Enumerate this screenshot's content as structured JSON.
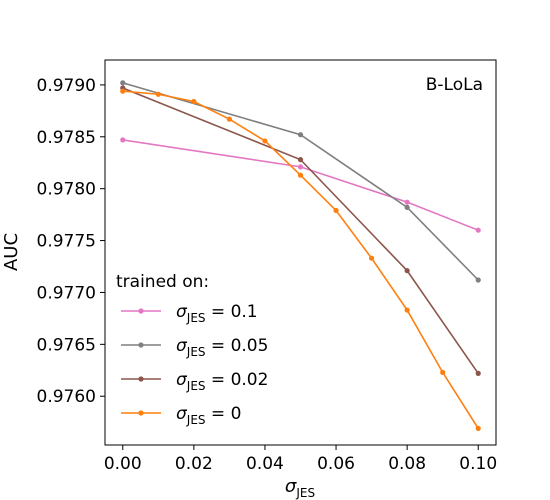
{
  "chart_data": {
    "type": "line",
    "title": "",
    "xlabel_symbol": "σ",
    "xlabel_sub": "JES",
    "ylabel": "AUC",
    "xlim": [
      -0.005,
      0.105
    ],
    "ylim": [
      0.97553,
      0.97924
    ],
    "xticks": [
      0.0,
      0.02,
      0.04,
      0.06,
      0.08,
      0.1
    ],
    "xtick_labels": [
      "0.00",
      "0.02",
      "0.04",
      "0.06",
      "0.08",
      "0.10"
    ],
    "yticks": [
      0.976,
      0.9765,
      0.977,
      0.9775,
      0.978,
      0.9785,
      0.979
    ],
    "ytick_labels": [
      "0.9760",
      "0.9765",
      "0.9770",
      "0.9775",
      "0.9780",
      "0.9785",
      "0.9790"
    ],
    "annotation": "B-LoLa",
    "legend_title": "trained on:",
    "legend_placement": "lower-left",
    "grid": false,
    "series": [
      {
        "name_symbol": "σ",
        "name_sub": "JES",
        "name_value": " = 0.1",
        "color": "#e377c2",
        "x": [
          0.0,
          0.05,
          0.08,
          0.1
        ],
        "y": [
          0.97847,
          0.97821,
          0.97787,
          0.9776
        ]
      },
      {
        "name_symbol": "σ",
        "name_sub": "JES",
        "name_value": " = 0.05",
        "color": "#7f7f7f",
        "x": [
          0.0,
          0.05,
          0.08,
          0.1
        ],
        "y": [
          0.97902,
          0.97852,
          0.97782,
          0.97712
        ]
      },
      {
        "name_symbol": "σ",
        "name_sub": "JES",
        "name_value": " = 0.02",
        "color": "#8c564b",
        "x": [
          0.0,
          0.05,
          0.08,
          0.1
        ],
        "y": [
          0.97897,
          0.97828,
          0.97721,
          0.97622
        ]
      },
      {
        "name_symbol": "σ",
        "name_sub": "JES",
        "name_value": " = 0",
        "color": "#ff7f0e",
        "x": [
          0.0,
          0.01,
          0.02,
          0.03,
          0.04,
          0.05,
          0.06,
          0.07,
          0.08,
          0.09,
          0.1
        ],
        "y": [
          0.97894,
          0.97891,
          0.97884,
          0.97867,
          0.97846,
          0.97813,
          0.97779,
          0.97733,
          0.97683,
          0.97623,
          0.97569
        ]
      }
    ]
  }
}
